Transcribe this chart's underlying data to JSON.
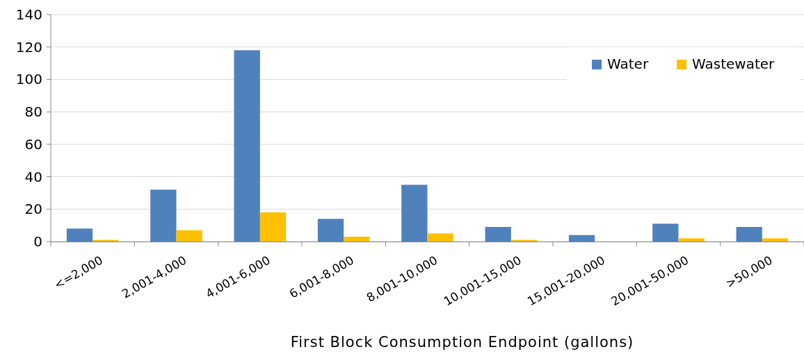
{
  "chart_data": {
    "type": "bar",
    "xlabel": "First Block Consumption Endpoint (gallons)",
    "categories": [
      "<=2,000",
      "2,001-4,000",
      "4,001-6,000",
      "6,001-8,000",
      "8,001-10,000",
      "10,001-15,000",
      "15,001-20,000",
      "20,001-50,000",
      ">50,000"
    ],
    "series": [
      {
        "name": "Water",
        "color": "#4f81bd",
        "values": [
          8,
          32,
          118,
          14,
          35,
          9,
          4,
          11,
          9
        ]
      },
      {
        "name": "Wastewater",
        "color": "#ffc000",
        "values": [
          1,
          7,
          18,
          3,
          5,
          1,
          0,
          2,
          2
        ]
      }
    ],
    "ylim": [
      0,
      140
    ],
    "yticks": [
      0,
      20,
      40,
      60,
      80,
      100,
      120,
      140
    ],
    "grid": "y",
    "legend": "top right"
  }
}
